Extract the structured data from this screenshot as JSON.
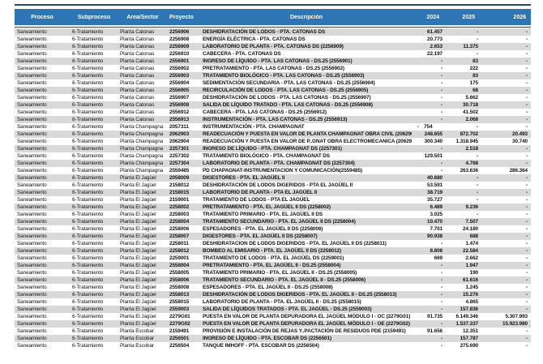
{
  "colors": {
    "header_background": "#2E75B6",
    "accent_dark_bar": "#1F4E79",
    "alternating_row": "#D9D9D9"
  },
  "table": {
    "columns": [
      "Proceso",
      "Subproceso",
      "Área/Sector",
      "Proyecto",
      "Descripción",
      "2024",
      "2025",
      "2026"
    ],
    "rows": [
      {
        "proceso": "Saneamiento",
        "subproceso": "6-Tratamiento",
        "area": "Planta Catonas",
        "proyecto": "2256906",
        "descripcion": "DESHIDRATACIÓN DE LODOS - PTA. CATONAS DS",
        "y2024": "61.457",
        "y2025": "-",
        "y2026": "-"
      },
      {
        "proceso": "Saneamiento",
        "subproceso": "6-Tratamiento",
        "area": "Planta Catonas",
        "proyecto": "2256908",
        "descripcion": "ENERGÍA ELÉCTRICA - PTA. CATONAS DS",
        "y2024": "20.773",
        "y2025": "-",
        "y2026": "-"
      },
      {
        "proceso": "Saneamiento",
        "subproceso": "6-Tratamiento",
        "area": "Planta Catonas",
        "proyecto": "2256909",
        "descripcion": "LABORATORIO DE PLANTA - PTA. CATONAS DS (2256909)",
        "y2024": "2.653",
        "y2025": "11.375",
        "y2026": "-"
      },
      {
        "proceso": "Saneamiento",
        "subproceso": "6-Tratamiento",
        "area": "Planta Catonas",
        "proyecto": "2256910",
        "descripcion": "CABECERA - PTA. CATONAS DS",
        "y2024": "22.197",
        "y2025": "-",
        "y2026": "-"
      },
      {
        "proceso": "Saneamiento",
        "subproceso": "6-Tratamiento",
        "area": "Planta Catonas",
        "proyecto": "2556901",
        "descripcion": "INGRESO DE LÍQUIDO - PTA. LAS CATONAS - DS.25 (2556901)",
        "y2024": "-",
        "y2025": "83",
        "y2026": "-"
      },
      {
        "proceso": "Saneamiento",
        "subproceso": "6-Tratamiento",
        "area": "Planta Catonas",
        "proyecto": "2556902",
        "descripcion": "PRETRATAMIENTO - PTA. LAS CATONAS - DS.25 (2556902)",
        "y2024": "-",
        "y2025": "222",
        "y2026": "-"
      },
      {
        "proceso": "Saneamiento",
        "subproceso": "6-Tratamiento",
        "area": "Planta Catonas",
        "proyecto": "2556903",
        "descripcion": "TRATAMIENTO BIOLÓGICO - PTA. LAS CATONAS - DS.25 (2556903)",
        "y2024": "-",
        "y2025": "83",
        "y2026": "-"
      },
      {
        "proceso": "Saneamiento",
        "subproceso": "6-Tratamiento",
        "area": "Planta Catonas",
        "proyecto": "2556904",
        "descripcion": "SEDIMENTACIÓN SECUNDARIA - PTA. LAS CATONAS - DS.25 (2556904)",
        "y2024": "-",
        "y2025": "175",
        "y2026": "-"
      },
      {
        "proceso": "Saneamiento",
        "subproceso": "6-Tratamiento",
        "area": "Planta Catonas",
        "proyecto": "2556905",
        "descripcion": "RECIRCULACIÓN DE LODOS - PTA. LAS CATONAS - DS.25 (2556905)",
        "y2024": "-",
        "y2025": "68",
        "y2026": "-"
      },
      {
        "proceso": "Saneamiento",
        "subproceso": "6-Tratamiento",
        "area": "Planta Catonas",
        "proyecto": "2556907",
        "descripcion": "DESHIDRATACIÓN DE LODOS - PTA. LAS CATONAS - DS.25 (2556907)",
        "y2024": "-",
        "y2025": "5.662",
        "y2026": "-"
      },
      {
        "proceso": "Saneamiento",
        "subproceso": "6-Tratamiento",
        "area": "Planta Catonas",
        "proyecto": "2556908",
        "descripcion": "SALIDA DE LÍQUIDO TRATADO - PTA. LAS CATONAS - DS.25 (2556908)",
        "y2024": "-",
        "y2025": "30.718",
        "y2026": "-"
      },
      {
        "proceso": "Saneamiento",
        "subproceso": "6-Tratamiento",
        "area": "Planta Catonas",
        "proyecto": "2556912",
        "descripcion": "CABECERA - PTA. LAS CATONAS - DS.25 (2556912)",
        "y2024": "-",
        "y2025": "41.502",
        "y2026": "-"
      },
      {
        "proceso": "Saneamiento",
        "subproceso": "6-Tratamiento",
        "area": "Planta Catonas",
        "proyecto": "2556913",
        "descripcion": "INSTRUMENTACIÓN - PTA. LAS CATONAS - DS.25 (2556913)",
        "y2024": "-",
        "y2025": "2.068",
        "y2026": "-"
      },
      {
        "proceso": "Saneamiento",
        "subproceso": "6-Tratamiento",
        "area": "Planta Champagna",
        "proyecto": "2057311",
        "descripcion": "INSTRUMENTACIÓN - PTA. CHAMPAGNAT",
        "y2024": "- 754  ",
        "y2025": "-",
        "y2026": "-"
      },
      {
        "proceso": "Saneamiento",
        "subproceso": "6-Tratamiento",
        "area": "Planta Champagna",
        "proyecto": "2062903",
        "descripcion": "READECUACIÓN Y PUESTA EN VALOR DE PLANTA CHAMPAGNAT OBRA CIVIL (2062903)",
        "y2024": "248.655",
        "y2025": "872.702",
        "y2026": "20.493"
      },
      {
        "proceso": "Saneamiento",
        "subproceso": "6-Tratamiento",
        "area": "Planta Champagna",
        "proyecto": "2062904",
        "descripcion": "READECUACIÓN Y PUESTA EN VALOR DE P..GNAT OBRA ELECTROMECANICA (2062904)",
        "y2024": "300.340",
        "y2025": "1.318.945",
        "y2026": "30.740"
      },
      {
        "proceso": "Saneamiento",
        "subproceso": "6-Tratamiento",
        "area": "Planta Champagna",
        "proyecto": "2257301",
        "descripcion": "INGRESO DE LÍQUIDO - PTA. CHAMPAGNAT DS (2257301)",
        "y2024": "-",
        "y2025": "2.518",
        "y2026": "-"
      },
      {
        "proceso": "Saneamiento",
        "subproceso": "6-Tratamiento",
        "area": "Planta Champagna",
        "proyecto": "2257302",
        "descripcion": "TRATAMIENTO BIOLÓGICO - PTA. CHAMPAGNAT DS",
        "y2024": "129.501",
        "y2025": "-",
        "y2026": "-"
      },
      {
        "proceso": "Saneamiento",
        "subproceso": "6-Tratamiento",
        "area": "Planta Champagna",
        "proyecto": "2257304",
        "descripcion": "LABORATORIO DE PLANTA - PTA. CHAMPAGNAT DS (2257304)",
        "y2024": "-",
        "y2025": "4.768",
        "y2026": "-"
      },
      {
        "proceso": "Saneamiento",
        "subproceso": "6-Tratamiento",
        "area": "Planta Champagna",
        "proyecto": "2559485",
        "descripcion": "PD CHAPAGNAT-INSTRUMENTACION Y COMUNICACIÓN(2559485)",
        "y2024": "-",
        "y2025": "263.636",
        "y2026": "286.364"
      },
      {
        "proceso": "Saneamiento",
        "subproceso": "6-Tratamiento",
        "area": "Planta El Jagüel",
        "proyecto": "2058009",
        "descripcion": "DIGESTORES - PTA. EL JAGÜEL II",
        "y2024": "40.680",
        "y2025": "-",
        "y2026": "-"
      },
      {
        "proceso": "Saneamiento",
        "subproceso": "6-Tratamiento",
        "area": "Planta El Jagüel",
        "proyecto": "2158012",
        "descripcion": "DESHIDRATACIÓN DE LODOS DIGERIDOS - PTA EL JAGÜEL II",
        "y2024": "53.591",
        "y2025": "-",
        "y2026": "-"
      },
      {
        "proceso": "Saneamiento",
        "subproceso": "6-Tratamiento",
        "area": "Planta El Jagüel",
        "proyecto": "2158015",
        "descripcion": "LABORATORIO DE PLANTA - PTA EL JAGÜEL II",
        "y2024": "38.719",
        "y2025": "-",
        "y2026": "-"
      },
      {
        "proceso": "Saneamiento",
        "subproceso": "6-Tratamiento",
        "area": "Planta El Jagüel",
        "proyecto": "2159001",
        "descripcion": "TRATAMIENTO DE LODOS - PTA EL JAGÜEL",
        "y2024": "35.727",
        "y2025": "-",
        "y2026": "-"
      },
      {
        "proceso": "Saneamiento",
        "subproceso": "6-Tratamiento",
        "area": "Planta El Jagüel",
        "proyecto": "2258002",
        "descripcion": "PRETRATAMIENTO - PTA. EL JAGÜEL II DS (2258002)",
        "y2024": "6.489",
        "y2025": "9.236",
        "y2026": "-"
      },
      {
        "proceso": "Saneamiento",
        "subproceso": "6-Tratamiento",
        "area": "Planta El Jagüel",
        "proyecto": "2258003",
        "descripcion": "TRATAMIENTO PRIMARIO - PTA. EL JAGÜEL II DS",
        "y2024": "3.025",
        "y2025": "-",
        "y2026": "-"
      },
      {
        "proceso": "Saneamiento",
        "subproceso": "6-Tratamiento",
        "area": "Planta El Jagüel",
        "proyecto": "2258004",
        "descripcion": "TRATAMIENTO SECUNDARIO - PTA. EL JAGÜEL II DS (2258004)",
        "y2024": "10.470",
        "y2025": "7.507",
        "y2026": "-"
      },
      {
        "proceso": "Saneamiento",
        "subproceso": "6-Tratamiento",
        "area": "Planta El Jagüel",
        "proyecto": "2258006",
        "descripcion": "ESPESADORES - PTA. EL JAGÜEL II DS (2258006)",
        "y2024": "7.701",
        "y2025": "24.180",
        "y2026": "-"
      },
      {
        "proceso": "Saneamiento",
        "subproceso": "6-Tratamiento",
        "area": "Planta El Jagüel",
        "proyecto": "2258007",
        "descripcion": "DIGESTORES - PTA. EL JAGÜEL II DS (2258007)",
        "y2024": "90.938",
        "y2025": "688",
        "y2026": "-"
      },
      {
        "proceso": "Saneamiento",
        "subproceso": "6-Tratamiento",
        "area": "Planta El Jagüel",
        "proyecto": "2258011",
        "descripcion": "DESHIDRATACION DE LODOS DIGERIDOS - PTA. EL JAGÜEL II DS (2258011)",
        "y2024": "-",
        "y2025": "1.474",
        "y2026": "-"
      },
      {
        "proceso": "Saneamiento",
        "subproceso": "6-Tratamiento",
        "area": "Planta El Jagüel",
        "proyecto": "2258012",
        "descripcion": "BOMBEO AL EMISARIO - PTA. EL JAGÜEL II DS (2258012)",
        "y2024": "8.808",
        "y2025": "22.584",
        "y2026": "-"
      },
      {
        "proceso": "Saneamiento",
        "subproceso": "6-Tratamiento",
        "area": "Planta El Jagüel",
        "proyecto": "2259001",
        "descripcion": "TRATAMIENTO DE LODOS - PTA. EL JAGÜEL DS (2259001)",
        "y2024": "669",
        "y2025": "2.662",
        "y2026": "-"
      },
      {
        "proceso": "Saneamiento",
        "subproceso": "6-Tratamiento",
        "area": "Planta El Jagüel",
        "proyecto": "2558004",
        "descripcion": "PRETRATAMIENTO - PTA. EL JAGÜEL II - DS.25 (2558004)",
        "y2024": "-",
        "y2025": "1.947",
        "y2026": "-"
      },
      {
        "proceso": "Saneamiento",
        "subproceso": "6-Tratamiento",
        "area": "Planta El Jagüel",
        "proyecto": "2558005",
        "descripcion": "TRATAMIENTO PRIMARIO - PTA. EL JAGÜEL II - DS.25 (2558005)",
        "y2024": "-",
        "y2025": "190",
        "y2026": "-"
      },
      {
        "proceso": "Saneamiento",
        "subproceso": "6-Tratamiento",
        "area": "Planta El Jagüel",
        "proyecto": "2558006",
        "descripcion": "TRATAMIENTO SECUNDARIO - PTA. EL JAGÜEL II - DS.25 (2558006)",
        "y2024": "-",
        "y2025": "61.616",
        "y2026": "-"
      },
      {
        "proceso": "Saneamiento",
        "subproceso": "6-Tratamiento",
        "area": "Planta El Jagüel",
        "proyecto": "2558008",
        "descripcion": "ESPESADORES - PTA. EL JAGÜEL II - DS.25 (2558008)",
        "y2024": "-",
        "y2025": "1.245",
        "y2026": "-"
      },
      {
        "proceso": "Saneamiento",
        "subproceso": "6-Tratamiento",
        "area": "Planta El Jagüel",
        "proyecto": "2558013",
        "descripcion": "DESHIDRATACIÓN DE LODOS DIGERIDOS - PTA. EL JAGÜEL II - DS.25 (2558013)",
        "y2024": "-",
        "y2025": "15.276",
        "y2026": "-"
      },
      {
        "proceso": "Saneamiento",
        "subproceso": "6-Tratamiento",
        "area": "Planta El Jagüel",
        "proyecto": "2558015",
        "descripcion": "LABORATORIO DE PLANTA - PTA. EL JAGÜEL II - DS.25 (2558015)",
        "y2024": "-",
        "y2025": "4.865",
        "y2026": "-"
      },
      {
        "proceso": "Saneamiento",
        "subproceso": "6-Tratamiento",
        "area": "Planta El Jagüel",
        "proyecto": "2559003",
        "descripcion": "SALIDA DE LÍQUIDOS TRATADOS - PTA. EL JAGÜEL - DS.25 (2559003)",
        "y2024": "-",
        "y2025": "157.836",
        "y2026": "-"
      },
      {
        "proceso": "Saneamiento",
        "subproceso": "6-Tratamiento",
        "area": "Planta El Jagüel",
        "proyecto": "2279G01",
        "descripcion": "PUESTA EN VALOR DE PLANTA DEPURADORA EL JAGÜEL MÓDULO I - OC (2279G01)",
        "y2024": "91.735",
        "y2025": "6.149.346",
        "y2026": "5.307.993"
      },
      {
        "proceso": "Saneamiento",
        "subproceso": "6-Tratamiento",
        "area": "Planta El Jagüel",
        "proyecto": "2279G02",
        "descripcion": "PUESTA EN VALOR DE PLANTA DEPURADORA EL JAGÜEL MÓDULO I - OE (2279G02)",
        "y2024": "-",
        "y2025": "1.537.337",
        "y2026": "15.923.980"
      },
      {
        "proceso": "Saneamiento",
        "subproceso": "6-Tratamiento",
        "area": "Planta Escobar",
        "proyecto": "2159491",
        "descripcion": "PROVISIÓN E INSTALACIÓN DE REJAS Y..PACTACIÓN DE RESIDUOS PDE (2159491)",
        "y2024": "91.656",
        "y2025": "12.351",
        "y2026": "-"
      },
      {
        "proceso": "Saneamiento",
        "subproceso": "6-Tratamiento",
        "area": "Planta Escobar",
        "proyecto": "2256501",
        "descripcion": "INGRESO DE LÍQUIDO - PTA. ESCOBAR DS (2256501)",
        "y2024": "-",
        "y2025": "157.787",
        "y2026": "-"
      },
      {
        "proceso": "Saneamiento",
        "subproceso": "6-Tratamiento",
        "area": "Planta Escobar",
        "proyecto": "2256504",
        "descripcion": "TANQUE IMHOFF - PTA. ESCOBAR DS (2256504)",
        "y2024": "-",
        "y2025": "275.690",
        "y2026": "-"
      }
    ]
  }
}
